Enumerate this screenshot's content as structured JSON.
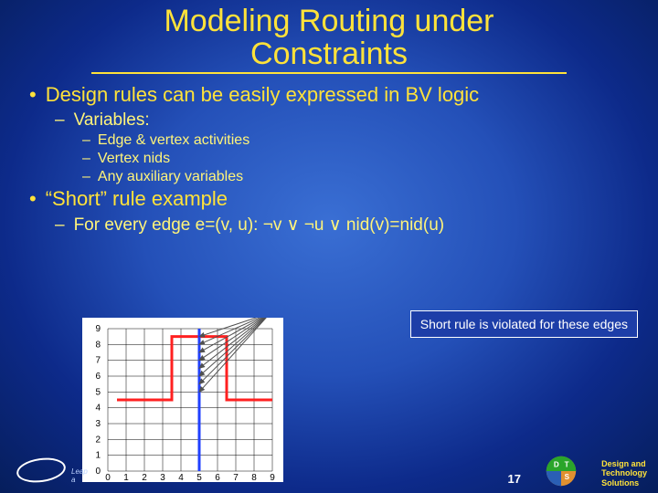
{
  "title_line1": "Modeling Routing under",
  "title_line2": "Constraints",
  "bullets": {
    "b1": "Design rules can be easily expressed in BV logic",
    "b1_1": "Variables:",
    "b1_1_1": "Edge & vertex activities",
    "b1_1_2": "Vertex nids",
    "b1_1_3": "Any auxiliary variables",
    "b2": "“Short” rule example",
    "b2_1": "For every edge e=(v, u): ¬v ∨ ¬u ∨ nid(v)=nid(u)"
  },
  "callout": "Short rule is violated for these edges",
  "page_number": "17",
  "footer": {
    "l1": "Design and",
    "l2": "Technology",
    "l3": "Solutions"
  },
  "leap": "Leap a",
  "figure": {
    "type": "grid-diagram",
    "x_ticks": [
      "0",
      "1",
      "2",
      "3",
      "4",
      "5",
      "6",
      "7",
      "8",
      "9"
    ],
    "y_ticks": [
      "0",
      "1",
      "2",
      "3",
      "4",
      "5",
      "6",
      "7",
      "8",
      "9"
    ],
    "grid_range": [
      0,
      9
    ],
    "background": "#ffffff",
    "grid_color": "#000000",
    "axis_color": "#000000",
    "tick_fontsize": 10,
    "nets": [
      {
        "color": "#ff2020",
        "width": 3,
        "polyline": [
          [
            0.5,
            4.5
          ],
          [
            3.5,
            4.5
          ],
          [
            3.5,
            8.5
          ],
          [
            6.5,
            8.5
          ],
          [
            6.5,
            4.5
          ],
          [
            9,
            4.5
          ]
        ]
      },
      {
        "color": "#2040ff",
        "width": 3,
        "polyline": [
          [
            5,
            0
          ],
          [
            5,
            9
          ]
        ]
      }
    ],
    "arrows": {
      "color": "#505050",
      "source": [
        8.9,
        10.0
      ],
      "targets": [
        [
          5,
          8.5
        ],
        [
          5,
          8
        ],
        [
          5,
          7.5
        ],
        [
          5,
          7
        ],
        [
          5,
          6.5
        ],
        [
          5,
          6
        ],
        [
          5,
          5.5
        ],
        [
          5,
          5
        ]
      ]
    }
  },
  "colors": {
    "title": "#ffe23a",
    "bullet1": "#ffe23a",
    "bullet2": "#fff47a",
    "callout_bg": "#1d3ea8",
    "callout_border": "#ffffff",
    "dts_green": "#2aa52a",
    "dts_blue": "#2a5fb5",
    "dts_orange": "#e09030"
  }
}
